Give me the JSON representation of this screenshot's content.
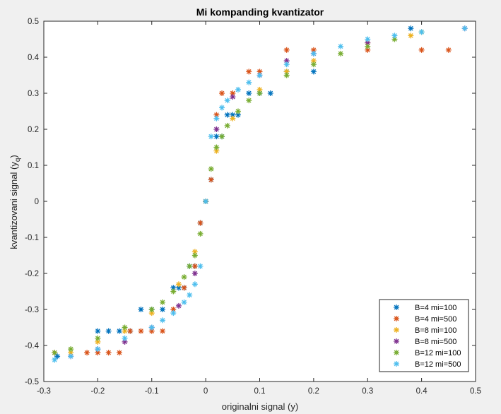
{
  "chart_data": {
    "type": "scatter",
    "title": "Mi kompanding kvantizator",
    "xlabel": "originalni signal (y)",
    "ylabel_main": "kvantizovani signal (y",
    "ylabel_sub": "q",
    "ylabel_close": ")",
    "xlim": [
      -0.3,
      0.5
    ],
    "ylim": [
      -0.5,
      0.5
    ],
    "xticks": [
      -0.3,
      -0.2,
      -0.1,
      0,
      0.1,
      0.2,
      0.3,
      0.4,
      0.5
    ],
    "xtick_labels": [
      "-0.3",
      "-0.2",
      "-0.1",
      "0",
      "0.1",
      "0.2",
      "0.3",
      "0.4",
      "0.5"
    ],
    "yticks": [
      -0.5,
      -0.4,
      -0.3,
      -0.2,
      -0.1,
      0,
      0.1,
      0.2,
      0.3,
      0.4,
      0.5
    ],
    "ytick_labels": [
      "-0.5",
      "-0.4",
      "-0.3",
      "-0.2",
      "-0.1",
      "0",
      "0.1",
      "0.2",
      "0.3",
      "0.4",
      "0.5"
    ],
    "grid": false,
    "legend_position": "bottom-right",
    "marker": "*",
    "series": [
      {
        "name": "B=4 mi=100",
        "color": "#0072BD",
        "x": [
          -0.275,
          -0.2,
          -0.18,
          -0.16,
          -0.14,
          -0.12,
          -0.1,
          -0.08,
          -0.06,
          -0.05,
          -0.04,
          -0.03,
          -0.02,
          -0.01,
          0,
          0.01,
          0.02,
          0.03,
          0.04,
          0.05,
          0.06,
          0.08,
          0.1,
          0.12,
          0.15,
          0.2,
          0.38
        ],
        "y": [
          -0.43,
          -0.36,
          -0.36,
          -0.36,
          -0.36,
          -0.3,
          -0.3,
          -0.3,
          -0.24,
          -0.24,
          -0.24,
          -0.18,
          -0.18,
          -0.06,
          0,
          0.06,
          0.18,
          0.18,
          0.24,
          0.24,
          0.24,
          0.3,
          0.3,
          0.3,
          0.36,
          0.36,
          0.48
        ]
      },
      {
        "name": "B=4 mi=500",
        "color": "#D95319",
        "x": [
          -0.28,
          -0.22,
          -0.2,
          -0.18,
          -0.16,
          -0.14,
          -0.12,
          -0.1,
          -0.08,
          -0.06,
          -0.04,
          -0.02,
          -0.01,
          0,
          0.01,
          0.02,
          0.03,
          0.05,
          0.08,
          0.1,
          0.15,
          0.2,
          0.3,
          0.4,
          0.45
        ],
        "y": [
          -0.42,
          -0.42,
          -0.42,
          -0.42,
          -0.42,
          -0.36,
          -0.36,
          -0.36,
          -0.36,
          -0.3,
          -0.24,
          -0.18,
          -0.06,
          0,
          0.06,
          0.24,
          0.3,
          0.3,
          0.36,
          0.36,
          0.42,
          0.42,
          0.42,
          0.42,
          0.42
        ]
      },
      {
        "name": "B=8 mi=100",
        "color": "#EDB120",
        "x": [
          -0.25,
          -0.2,
          -0.15,
          -0.1,
          -0.05,
          -0.02,
          0,
          0.02,
          0.05,
          0.1,
          0.15,
          0.2,
          0.3,
          0.38
        ],
        "y": [
          -0.42,
          -0.39,
          -0.36,
          -0.31,
          -0.23,
          -0.14,
          0,
          0.14,
          0.23,
          0.31,
          0.36,
          0.39,
          0.44,
          0.46
        ]
      },
      {
        "name": "B=8 mi=500",
        "color": "#7E2F8E",
        "x": [
          -0.25,
          -0.2,
          -0.15,
          -0.1,
          -0.05,
          -0.02,
          0,
          0.02,
          0.05,
          0.1,
          0.15,
          0.2,
          0.3,
          0.48
        ],
        "y": [
          -0.43,
          -0.41,
          -0.39,
          -0.35,
          -0.29,
          -0.2,
          0,
          0.2,
          0.29,
          0.35,
          0.39,
          0.41,
          0.44,
          0.48
        ]
      },
      {
        "name": "B=12 mi=100",
        "color": "#77AC30",
        "x": [
          -0.28,
          -0.25,
          -0.2,
          -0.15,
          -0.1,
          -0.08,
          -0.06,
          -0.04,
          -0.03,
          -0.02,
          -0.01,
          0,
          0.01,
          0.02,
          0.03,
          0.04,
          0.06,
          0.08,
          0.1,
          0.15,
          0.2,
          0.25,
          0.3,
          0.35,
          0.4
        ],
        "y": [
          -0.42,
          -0.41,
          -0.38,
          -0.35,
          -0.3,
          -0.28,
          -0.25,
          -0.21,
          -0.18,
          -0.15,
          -0.09,
          0,
          0.09,
          0.15,
          0.18,
          0.21,
          0.25,
          0.28,
          0.3,
          0.35,
          0.38,
          0.41,
          0.43,
          0.45,
          0.47
        ]
      },
      {
        "name": "B=12 mi=500",
        "color": "#4DBEEE",
        "x": [
          -0.28,
          -0.25,
          -0.2,
          -0.15,
          -0.1,
          -0.08,
          -0.06,
          -0.04,
          -0.03,
          -0.02,
          -0.01,
          0,
          0.01,
          0.02,
          0.03,
          0.04,
          0.06,
          0.08,
          0.1,
          0.15,
          0.2,
          0.25,
          0.3,
          0.35,
          0.4,
          0.48
        ],
        "y": [
          -0.44,
          -0.43,
          -0.41,
          -0.38,
          -0.35,
          -0.33,
          -0.31,
          -0.28,
          -0.26,
          -0.23,
          -0.18,
          0,
          0.18,
          0.23,
          0.26,
          0.28,
          0.31,
          0.33,
          0.35,
          0.38,
          0.41,
          0.43,
          0.45,
          0.46,
          0.47,
          0.48
        ]
      }
    ]
  }
}
